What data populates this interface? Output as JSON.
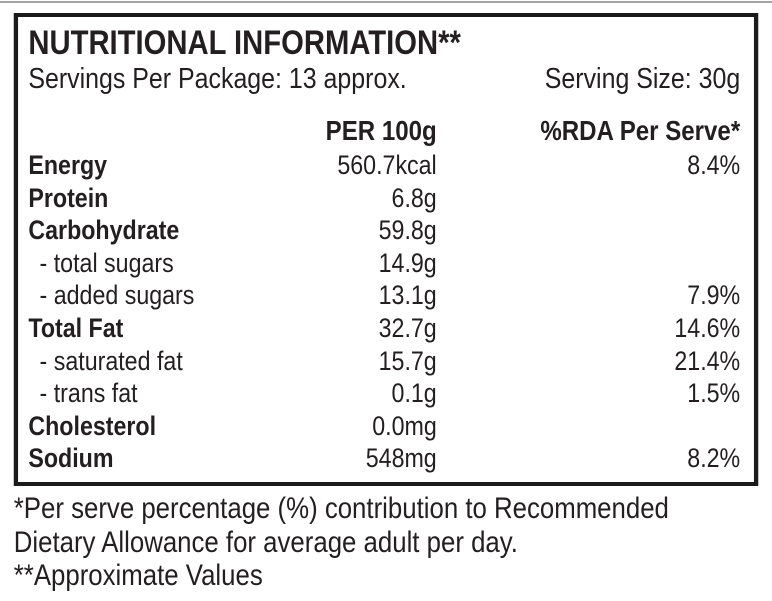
{
  "colors": {
    "background": "#ffffff",
    "text": "#231f20",
    "border": "#1b1b1b",
    "top_edge_line": "#a3a3a3"
  },
  "label": {
    "title": "NUTRITIONAL INFORMATION**",
    "servings_per_package": "Servings Per Package: 13 approx.",
    "serving_size": "Serving Size: 30g",
    "columns": {
      "amount_header": "PER 100g",
      "rda_header": "%RDA Per Serve*"
    },
    "rows": [
      {
        "name": "Energy",
        "amount": "560.7kcal",
        "rda": "8.4%",
        "bold": true,
        "indent": false
      },
      {
        "name": "Protein",
        "amount": "6.8g",
        "rda": "",
        "bold": true,
        "indent": false
      },
      {
        "name": "Carbohydrate",
        "amount": "59.8g",
        "rda": "",
        "bold": true,
        "indent": false
      },
      {
        "name": "- total sugars",
        "amount": "14.9g",
        "rda": "",
        "bold": false,
        "indent": true
      },
      {
        "name": "- added sugars",
        "amount": "13.1g",
        "rda": "7.9%",
        "bold": false,
        "indent": true
      },
      {
        "name": "Total Fat",
        "amount": "32.7g",
        "rda": "14.6%",
        "bold": true,
        "indent": false
      },
      {
        "name": "- saturated fat",
        "amount": "15.7g",
        "rda": "21.4%",
        "bold": false,
        "indent": true
      },
      {
        "name": "- trans fat",
        "amount": "0.1g",
        "rda": "1.5%",
        "bold": false,
        "indent": true
      },
      {
        "name": "Cholesterol",
        "amount": "0.0mg",
        "rda": "",
        "bold": true,
        "indent": false
      },
      {
        "name": "Sodium",
        "amount": "548mg",
        "rda": "8.2%",
        "bold": true,
        "indent": false
      }
    ],
    "footnote_lines": [
      "*Per serve percentage (%) contribution to Recommended",
      "Dietary Allowance for average adult per day.",
      "**Approximate Values"
    ]
  }
}
